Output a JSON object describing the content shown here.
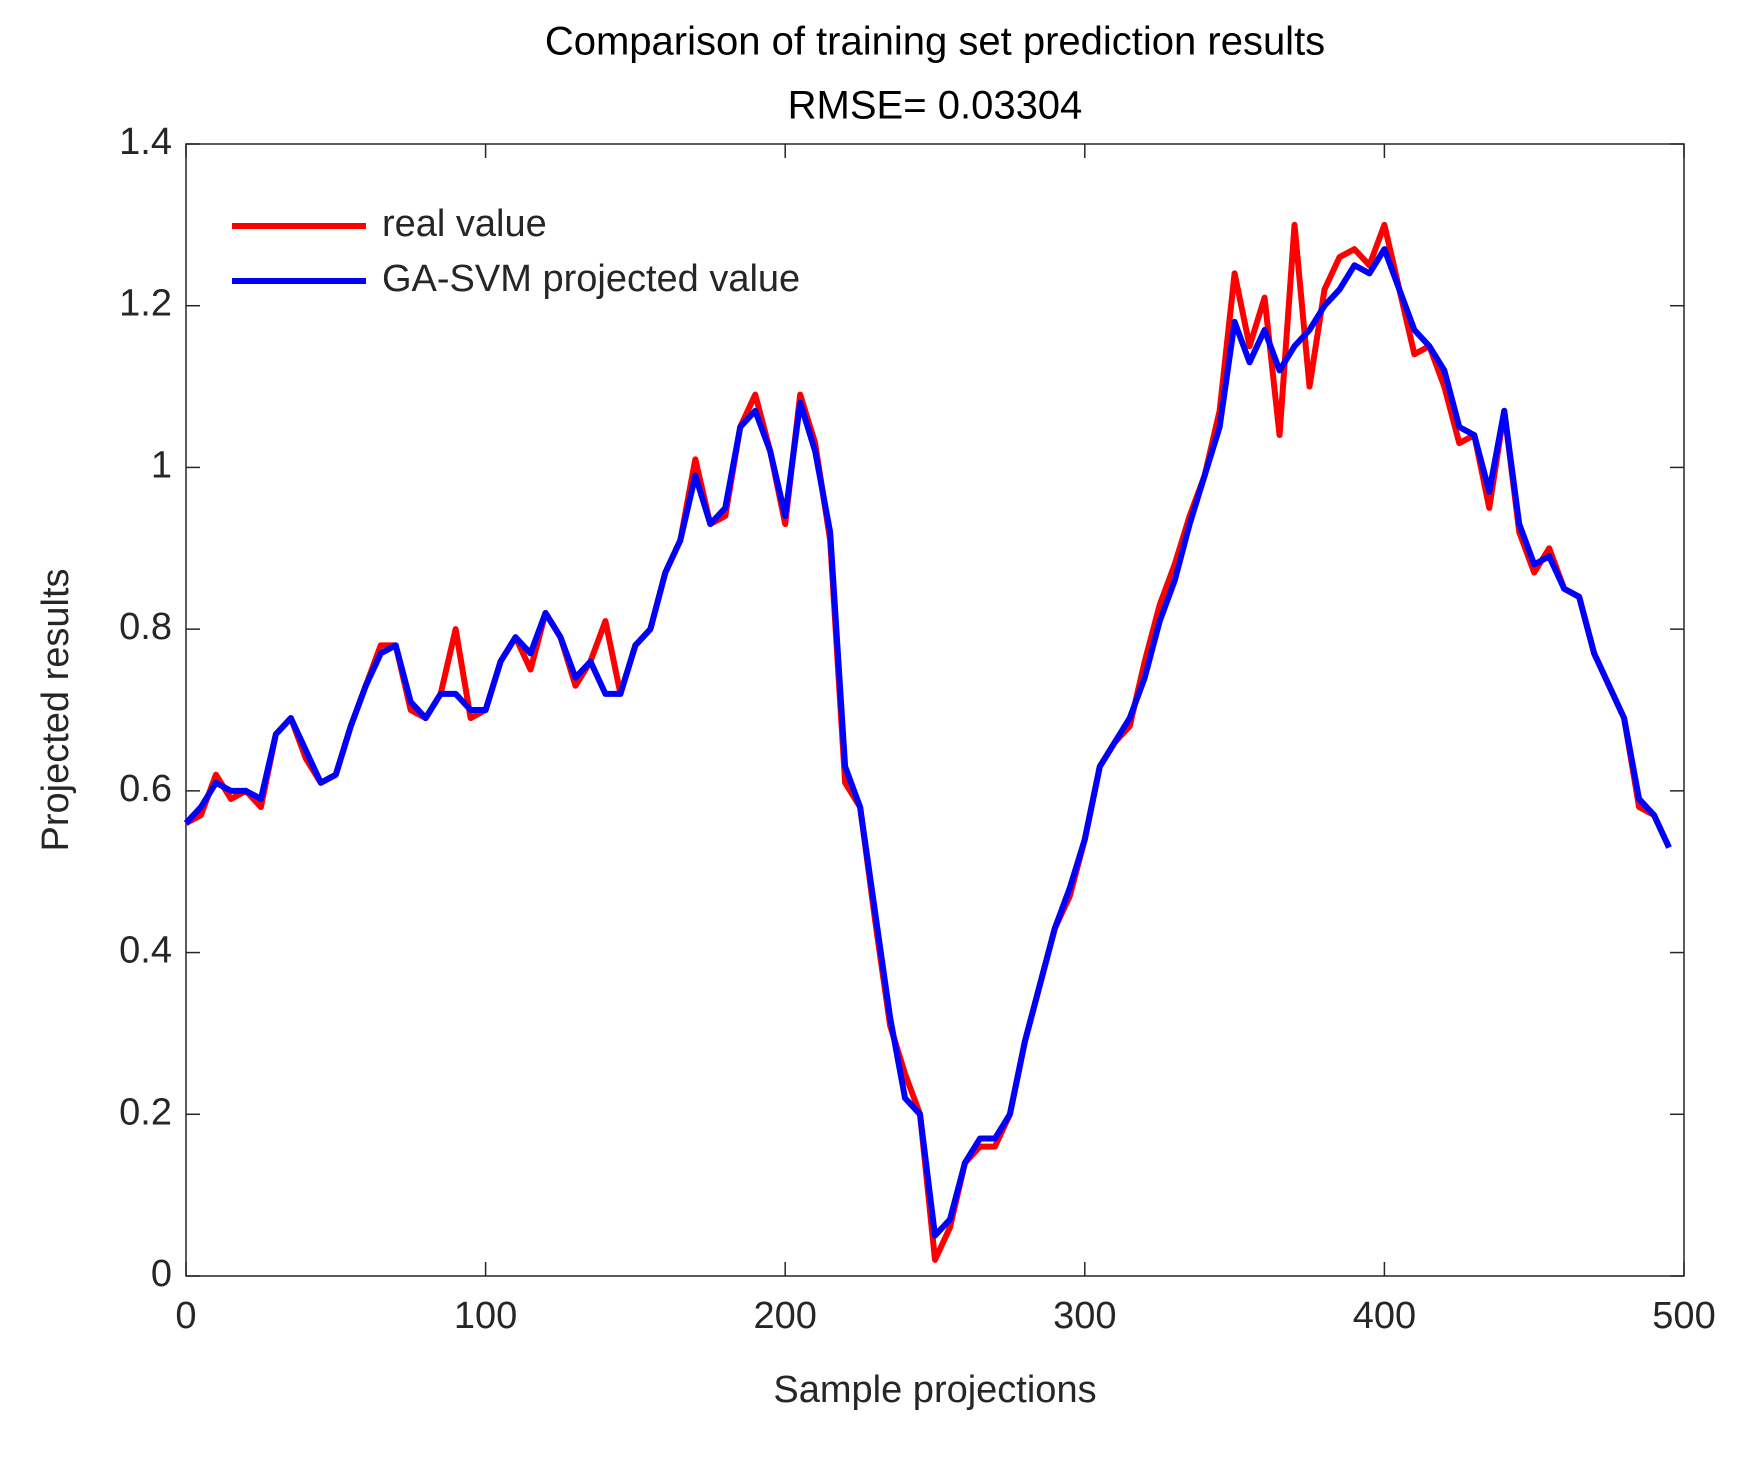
{
  "chart_data": {
    "type": "line",
    "title": "Comparison of training set prediction results",
    "subtitle": "RMSE= 0.03304",
    "xlabel": "Sample projections",
    "ylabel": "Projected results",
    "x": [
      0,
      5,
      10,
      15,
      20,
      25,
      30,
      35,
      40,
      45,
      50,
      55,
      60,
      65,
      70,
      75,
      80,
      85,
      90,
      95,
      100,
      105,
      110,
      115,
      120,
      125,
      130,
      135,
      140,
      145,
      150,
      155,
      160,
      165,
      170,
      175,
      180,
      185,
      190,
      195,
      200,
      205,
      210,
      215,
      220,
      225,
      230,
      235,
      240,
      245,
      250,
      255,
      260,
      265,
      270,
      275,
      280,
      285,
      290,
      295,
      300,
      305,
      310,
      315,
      320,
      325,
      330,
      335,
      340,
      345,
      350,
      355,
      360,
      365,
      370,
      375,
      380,
      385,
      390,
      395,
      400,
      405,
      410,
      415,
      420,
      425,
      430,
      435,
      440,
      445,
      450,
      455,
      460,
      465,
      470,
      475,
      480,
      485,
      490,
      495
    ],
    "series": [
      {
        "name": "real value",
        "color": "#ff0000",
        "values": [
          0.56,
          0.57,
          0.62,
          0.59,
          0.6,
          0.58,
          0.67,
          0.69,
          0.64,
          0.61,
          0.62,
          0.68,
          0.73,
          0.78,
          0.78,
          0.7,
          0.69,
          0.72,
          0.8,
          0.69,
          0.7,
          0.76,
          0.79,
          0.75,
          0.82,
          0.79,
          0.73,
          0.76,
          0.81,
          0.72,
          0.78,
          0.8,
          0.87,
          0.91,
          1.01,
          0.93,
          0.94,
          1.05,
          1.09,
          1.02,
          0.93,
          1.09,
          1.03,
          0.91,
          0.61,
          0.58,
          0.44,
          0.31,
          0.25,
          0.2,
          0.02,
          0.06,
          0.14,
          0.16,
          0.16,
          0.2,
          0.29,
          0.36,
          0.43,
          0.47,
          0.54,
          0.63,
          0.66,
          0.68,
          0.76,
          0.83,
          0.88,
          0.94,
          0.99,
          1.07,
          1.24,
          1.15,
          1.21,
          1.04,
          1.3,
          1.1,
          1.22,
          1.26,
          1.27,
          1.25,
          1.3,
          1.22,
          1.14,
          1.15,
          1.1,
          1.03,
          1.04,
          0.95,
          1.07,
          0.92,
          0.87,
          0.9,
          0.85,
          0.84,
          0.77,
          0.73,
          0.69,
          0.58,
          0.57,
          0.53
        ]
      },
      {
        "name": "GA-SVM projected value",
        "color": "#0000ff",
        "values": [
          0.56,
          0.58,
          0.61,
          0.6,
          0.6,
          0.59,
          0.67,
          0.69,
          0.65,
          0.61,
          0.62,
          0.68,
          0.73,
          0.77,
          0.78,
          0.71,
          0.69,
          0.72,
          0.72,
          0.7,
          0.7,
          0.76,
          0.79,
          0.77,
          0.82,
          0.79,
          0.74,
          0.76,
          0.72,
          0.72,
          0.78,
          0.8,
          0.87,
          0.91,
          0.99,
          0.93,
          0.95,
          1.05,
          1.07,
          1.02,
          0.94,
          1.08,
          1.02,
          0.92,
          0.63,
          0.58,
          0.45,
          0.32,
          0.22,
          0.2,
          0.05,
          0.07,
          0.14,
          0.17,
          0.17,
          0.2,
          0.29,
          0.36,
          0.43,
          0.48,
          0.54,
          0.63,
          0.66,
          0.69,
          0.74,
          0.81,
          0.86,
          0.93,
          0.99,
          1.05,
          1.18,
          1.13,
          1.17,
          1.12,
          1.15,
          1.17,
          1.2,
          1.22,
          1.25,
          1.24,
          1.27,
          1.22,
          1.17,
          1.15,
          1.12,
          1.05,
          1.04,
          0.97,
          1.07,
          0.93,
          0.88,
          0.89,
          0.85,
          0.84,
          0.77,
          0.73,
          0.69,
          0.59,
          0.57,
          0.53
        ]
      }
    ],
    "xlim": [
      0,
      500
    ],
    "xticks": [
      0,
      100,
      200,
      300,
      400,
      500
    ],
    "ylim": [
      0,
      1.4
    ],
    "yticks": [
      0,
      0.2,
      0.4,
      0.6,
      0.8,
      1,
      1.2,
      1.4
    ],
    "legend": "upper left"
  }
}
